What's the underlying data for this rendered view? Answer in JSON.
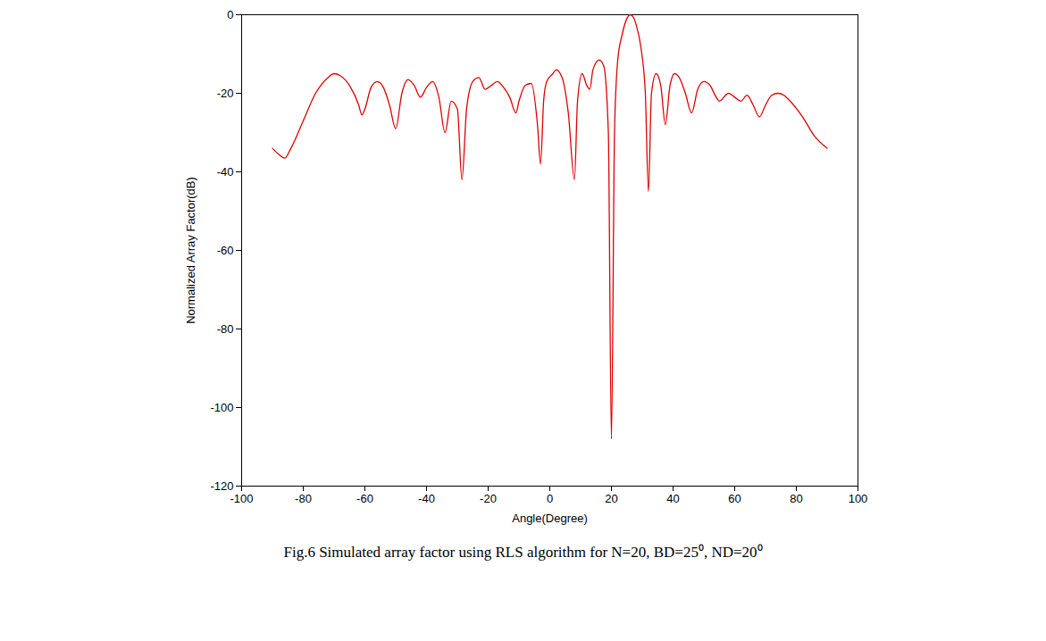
{
  "chart_data": {
    "type": "line",
    "caption": "Fig.6 Simulated array factor using RLS algorithm for N=20, BD=25⁰, ND=20⁰",
    "x_label": "Angle(Degree)",
    "y_label": "Normalized Array Factor(dB)",
    "color": "#e00000",
    "x": [
      -90,
      -88,
      -86,
      -84,
      -80,
      -76,
      -72,
      -70,
      -68,
      -65,
      -62,
      -61,
      -60,
      -58,
      -56,
      -54,
      -52,
      -50,
      -48,
      -46,
      -44,
      -42,
      -40,
      -38,
      -36,
      -34,
      -32,
      -30,
      -28.5,
      -27,
      -25,
      -23,
      -21,
      -19,
      -17,
      -15,
      -13,
      -11,
      -10,
      -8,
      -6,
      -4,
      -3,
      -2,
      -1,
      1,
      2,
      4,
      6,
      8,
      9,
      10.5,
      12,
      13,
      14,
      16,
      17.5,
      19,
      20,
      21,
      22,
      23.5,
      25,
      26,
      27,
      28,
      29.5,
      31,
      32,
      33,
      34.5,
      36,
      37.5,
      39,
      40.5,
      42,
      44,
      46,
      48,
      50,
      52,
      54,
      55,
      58,
      60,
      62,
      64,
      66,
      68,
      70,
      72,
      74,
      76,
      78,
      82,
      86,
      90
    ],
    "values": [
      -34,
      -35.5,
      -36.5,
      -34,
      -27,
      -20,
      -16,
      -15,
      -15.5,
      -18,
      -23,
      -25.5,
      -24,
      -18.5,
      -17,
      -18.5,
      -23,
      -29,
      -20,
      -16.5,
      -18,
      -21,
      -18.5,
      -17,
      -21,
      -30,
      -22,
      -24,
      -42,
      -24,
      -17,
      -16,
      -19,
      -18,
      -17,
      -18.5,
      -21,
      -25,
      -22,
      -18,
      -17.5,
      -28,
      -38,
      -22,
      -17,
      -15,
      -14,
      -16,
      -25,
      -42,
      -22,
      -15,
      -18,
      -19,
      -14,
      -11.5,
      -13,
      -30,
      -108,
      -30,
      -12,
      -5,
      -1,
      0,
      -0.5,
      -2.5,
      -8,
      -20,
      -45,
      -20,
      -15,
      -18,
      -28,
      -18,
      -15,
      -16,
      -20,
      -25,
      -19,
      -17,
      -18,
      -21,
      -22,
      -20,
      -21,
      -22,
      -20.5,
      -23,
      -26,
      -23,
      -20.5,
      -20,
      -20.5,
      -22,
      -26,
      -31,
      -34
    ],
    "xlim": [
      -100,
      100
    ],
    "xticks": [
      -100,
      -80,
      -60,
      -40,
      -20,
      0,
      20,
      40,
      60,
      80,
      100
    ],
    "ylim": [
      -120,
      0
    ],
    "yticks": [
      -120,
      -100,
      -80,
      -60,
      -40,
      -20,
      0
    ],
    "grid": false
  }
}
